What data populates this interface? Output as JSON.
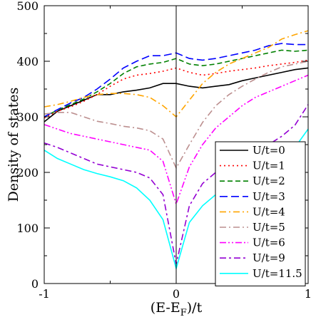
{
  "chart_data": {
    "type": "line",
    "title": "",
    "xlabel": "(E-E",
    "xlabel_sub": "F",
    "xlabel_tail": ")/t",
    "ylabel": "Density of states",
    "xlim": [
      -1,
      1
    ],
    "ylim": [
      0,
      500
    ],
    "xticks": [
      -1,
      0,
      1
    ],
    "xtick_labels": [
      "-1",
      "0",
      "1"
    ],
    "yticks": [
      0,
      100,
      200,
      300,
      400,
      500
    ],
    "ytick_labels": [
      "0",
      "100",
      "200",
      "300",
      "400",
      "500"
    ],
    "vline_at": 0,
    "grid": false,
    "legend_position": "bottom-right",
    "series": [
      {
        "name": "U/t=0",
        "color": "#000000",
        "dash": "solid",
        "x": [
          -1,
          -0.9,
          -0.8,
          -0.7,
          -0.6,
          -0.5,
          -0.4,
          -0.3,
          -0.2,
          -0.1,
          0,
          0.1,
          0.2,
          0.3,
          0.4,
          0.5,
          0.6,
          0.7,
          0.8,
          0.9,
          1
        ],
        "y": [
          291,
          310,
          320,
          330,
          340,
          340,
          345,
          348,
          352,
          360,
          360,
          355,
          352,
          355,
          358,
          365,
          370,
          375,
          380,
          385,
          388
        ]
      },
      {
        "name": "U/t=1",
        "color": "#ff0000",
        "dash": "dotted",
        "x": [
          -1,
          -0.9,
          -0.8,
          -0.7,
          -0.6,
          -0.5,
          -0.4,
          -0.3,
          -0.2,
          -0.1,
          0,
          0.1,
          0.2,
          0.3,
          0.4,
          0.5,
          0.6,
          0.7,
          0.8,
          0.9,
          1
        ],
        "y": [
          298,
          310,
          318,
          328,
          340,
          355,
          368,
          375,
          378,
          382,
          388,
          380,
          375,
          378,
          382,
          385,
          388,
          392,
          395,
          398,
          402
        ]
      },
      {
        "name": "U/t=2",
        "color": "#008000",
        "dash": "dashed",
        "x": [
          -1,
          -0.9,
          -0.8,
          -0.7,
          -0.6,
          -0.5,
          -0.4,
          -0.3,
          -0.2,
          -0.1,
          0,
          0.1,
          0.2,
          0.3,
          0.4,
          0.5,
          0.6,
          0.7,
          0.8,
          0.9,
          1
        ],
        "y": [
          300,
          312,
          322,
          332,
          345,
          360,
          378,
          390,
          395,
          398,
          405,
          395,
          392,
          395,
          400,
          405,
          410,
          415,
          420,
          418,
          420
        ]
      },
      {
        "name": "U/t=3",
        "color": "#0000ff",
        "dash": "longdash",
        "x": [
          -1,
          -0.9,
          -0.8,
          -0.7,
          -0.6,
          -0.5,
          -0.4,
          -0.3,
          -0.2,
          -0.1,
          0,
          0.1,
          0.2,
          0.3,
          0.4,
          0.5,
          0.6,
          0.7,
          0.8,
          0.9,
          1
        ],
        "y": [
          300,
          313,
          325,
          335,
          350,
          368,
          388,
          400,
          410,
          410,
          415,
          405,
          402,
          405,
          410,
          415,
          420,
          428,
          432,
          430,
          430
        ]
      },
      {
        "name": "U/t=4",
        "color": "#ffa500",
        "dash": "dashdot",
        "x": [
          -1,
          -0.9,
          -0.8,
          -0.7,
          -0.6,
          -0.5,
          -0.4,
          -0.3,
          -0.2,
          -0.1,
          0,
          0.1,
          0.2,
          0.3,
          0.4,
          0.5,
          0.6,
          0.7,
          0.8,
          0.9,
          1
        ],
        "y": [
          318,
          322,
          328,
          335,
          340,
          342,
          342,
          340,
          335,
          320,
          300,
          330,
          360,
          380,
          395,
          405,
          415,
          425,
          440,
          448,
          455
        ]
      },
      {
        "name": "U/t=5",
        "color": "#bc8f8f",
        "dash": "dashdot",
        "x": [
          -1,
          -0.9,
          -0.8,
          -0.7,
          -0.6,
          -0.5,
          -0.4,
          -0.3,
          -0.2,
          -0.1,
          0,
          0.1,
          0.2,
          0.3,
          0.4,
          0.5,
          0.6,
          0.7,
          0.8,
          0.9,
          1
        ],
        "y": [
          305,
          308,
          308,
          300,
          292,
          288,
          283,
          280,
          275,
          260,
          208,
          250,
          290,
          320,
          340,
          355,
          368,
          380,
          390,
          395,
          400
        ]
      },
      {
        "name": "U/t=6",
        "color": "#ff00ff",
        "dash": "dashdotdot",
        "x": [
          -1,
          -0.9,
          -0.8,
          -0.7,
          -0.6,
          -0.5,
          -0.4,
          -0.3,
          -0.2,
          -0.1,
          0,
          0.1,
          0.2,
          0.3,
          0.4,
          0.5,
          0.6,
          0.7,
          0.8,
          0.9,
          1
        ],
        "y": [
          286,
          278,
          270,
          265,
          260,
          255,
          250,
          245,
          240,
          220,
          143,
          210,
          250,
          280,
          300,
          320,
          335,
          345,
          355,
          365,
          375
        ]
      },
      {
        "name": "U/t=9",
        "color": "#9400d3",
        "dash": "dashdash",
        "x": [
          -1,
          -0.9,
          -0.8,
          -0.7,
          -0.6,
          -0.5,
          -0.4,
          -0.3,
          -0.2,
          -0.1,
          0,
          0.1,
          0.2,
          0.3,
          0.4,
          0.5,
          0.6,
          0.7,
          0.8,
          0.9,
          1
        ],
        "y": [
          253,
          245,
          235,
          225,
          215,
          210,
          205,
          200,
          190,
          160,
          35,
          140,
          180,
          200,
          215,
          225,
          235,
          250,
          265,
          285,
          322
        ]
      },
      {
        "name": "U/t=11.5",
        "color": "#00ffff",
        "dash": "solid",
        "x": [
          -1,
          -0.9,
          -0.8,
          -0.7,
          -0.6,
          -0.5,
          -0.4,
          -0.3,
          -0.2,
          -0.1,
          0,
          0.1,
          0.2,
          0.3,
          0.4,
          0.5,
          0.6,
          0.7,
          0.8,
          0.9,
          1
        ],
        "y": [
          240,
          225,
          215,
          205,
          198,
          192,
          185,
          172,
          150,
          115,
          27,
          110,
          140,
          160,
          175,
          188,
          200,
          212,
          225,
          245,
          278
        ]
      }
    ]
  }
}
